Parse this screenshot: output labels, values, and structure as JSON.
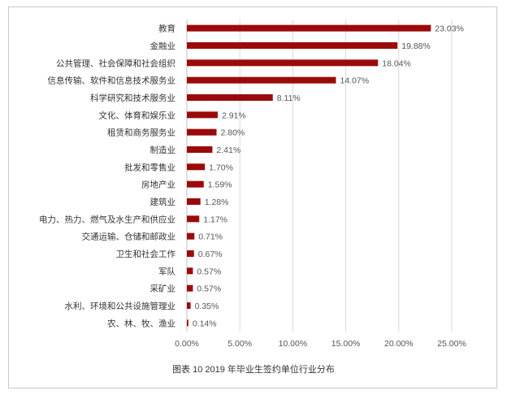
{
  "caption": "图表 10  2019 年毕业生签约单位行业分布",
  "colors": {
    "bar": "#9b0a0a",
    "grid": "#d9d9d9",
    "axis": "#bfbfbf"
  },
  "chart_data": {
    "type": "bar",
    "orientation": "horizontal",
    "title": "",
    "xlabel": "",
    "ylabel": "",
    "xlim": [
      0,
      25
    ],
    "grid": true,
    "legend": "none",
    "ticks": [
      "0.00%",
      "5.00%",
      "10.00%",
      "15.00%",
      "20.00%",
      "25.00%"
    ],
    "categories": [
      "教育",
      "金融业",
      "公共管理、社会保障和社会组织",
      "信息传输、软件和信息技术服务业",
      "科学研究和技术服务业",
      "文化、体育和娱乐业",
      "租赁和商务服务业",
      "制造业",
      "批发和零售业",
      "房地产业",
      "建筑业",
      "电力、热力、燃气及水生产和供应业",
      "交通运输、仓储和邮政业",
      "卫生和社会工作",
      "军队",
      "采矿业",
      "水利、环境和公共设施管理业",
      "农、林、牧、渔业"
    ],
    "values": [
      23.03,
      19.88,
      18.04,
      14.07,
      8.11,
      2.91,
      2.8,
      2.41,
      1.7,
      1.59,
      1.28,
      1.17,
      0.71,
      0.67,
      0.57,
      0.57,
      0.35,
      0.14
    ],
    "value_labels": [
      "23.03%",
      "19.88%",
      "18.04%",
      "14.07%",
      "8.11%",
      "2.91%",
      "2.80%",
      "2.41%",
      "1.70%",
      "1.59%",
      "1.28%",
      "1.17%",
      "0.71%",
      "0.67%",
      "0.57%",
      "0.57%",
      "0.35%",
      "0.14%"
    ]
  }
}
